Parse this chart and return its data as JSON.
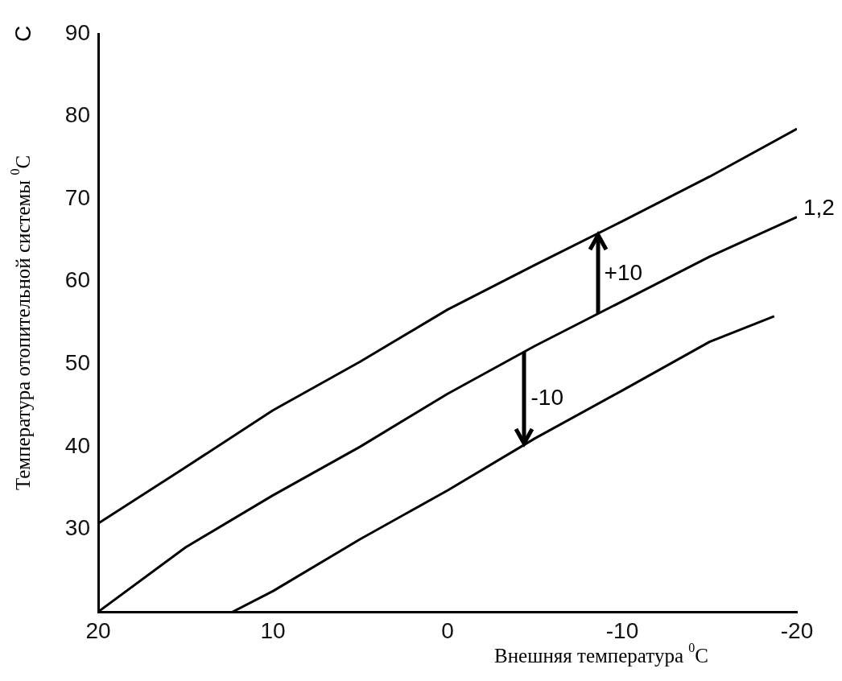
{
  "chart_data": {
    "type": "line",
    "xlabel": "Внешняя температура $^{0}$C",
    "ylabel": "Температура отопительной системы $^{0}$C",
    "xlim": [
      20,
      -20
    ],
    "xticks": [
      20,
      10,
      0,
      -10,
      -20
    ],
    "ylim": [
      20,
      90
    ],
    "yticks": [
      30,
      40,
      50,
      60,
      70,
      80,
      90
    ],
    "grid": false,
    "legend": false,
    "marker": "none",
    "line_style": "solid",
    "series": [
      {
        "color": "#000000",
        "x": [
          20,
          15,
          10,
          5,
          0,
          -5,
          -10,
          -15,
          -20
        ],
        "values": [
          30.7,
          37.5,
          44.4,
          50.3,
          56.6,
          62,
          67.3,
          72.7,
          78.5
        ]
      },
      {
        "name": "1,2",
        "color": "#000000",
        "x": [
          20,
          15,
          10,
          5,
          0,
          -5,
          -10,
          -15,
          -20
        ],
        "values": [
          20,
          27.8,
          34.1,
          40,
          46.4,
          52.2,
          57.6,
          63,
          67.8
        ]
      },
      {
        "color": "#000000",
        "x": [
          12.3,
          10,
          5,
          0,
          -5,
          -10,
          -15,
          -18.7
        ],
        "values": [
          20,
          22.5,
          28.8,
          34.7,
          41,
          46.8,
          52.7,
          55.8
        ]
      }
    ],
    "annotations": [
      "C",
      {
        "text": "+10",
        "x": -8.6,
        "y": 65.8
      },
      {
        "text": "-10",
        "x": -4.4,
        "y": 40.2
      }
    ]
  }
}
